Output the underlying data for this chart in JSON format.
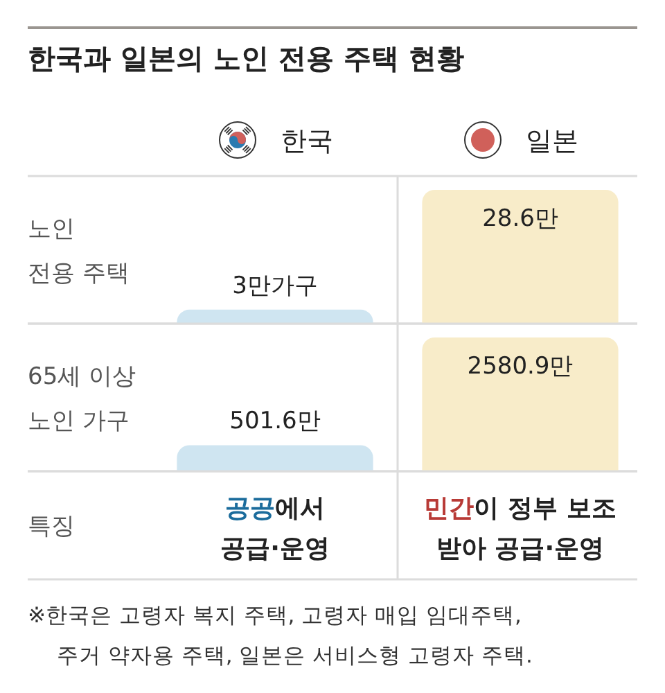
{
  "chart_data": [
    {
      "type": "bar",
      "title": "한국과 일본의 노인 전용 주택 현황",
      "ylabel": "노인\n전용 주택",
      "categories": [
        "한국",
        "일본"
      ],
      "values": [
        3,
        28.6
      ],
      "value_labels": [
        "3만가구",
        "28.6만"
      ],
      "colors": [
        "#cfe5f1",
        "#f8ecc9"
      ]
    },
    {
      "type": "bar",
      "ylabel": "65세 이상\n노인 가구",
      "values": [
        501.6,
        2580.9
      ],
      "value_labels": [
        "501.6만",
        "2580.9만"
      ],
      "colors": [
        "#cfe5f1",
        "#f8ecc9"
      ]
    },
    {
      "type": "other",
      "ylabel": "특징",
      "colors": [
        "#1b6c9c",
        "#b83a36"
      ],
      "annotations": [
        "공공에서\n공급·운영",
        "민간이 정부 보조\n받아 공급·운영",
        "※한국은 고령자 복지 주택, 고령자 매입 임대주택,\n주거 약자용 주택, 일본은 서비스형 고령자 주택."
      ]
    }
  ]
}
